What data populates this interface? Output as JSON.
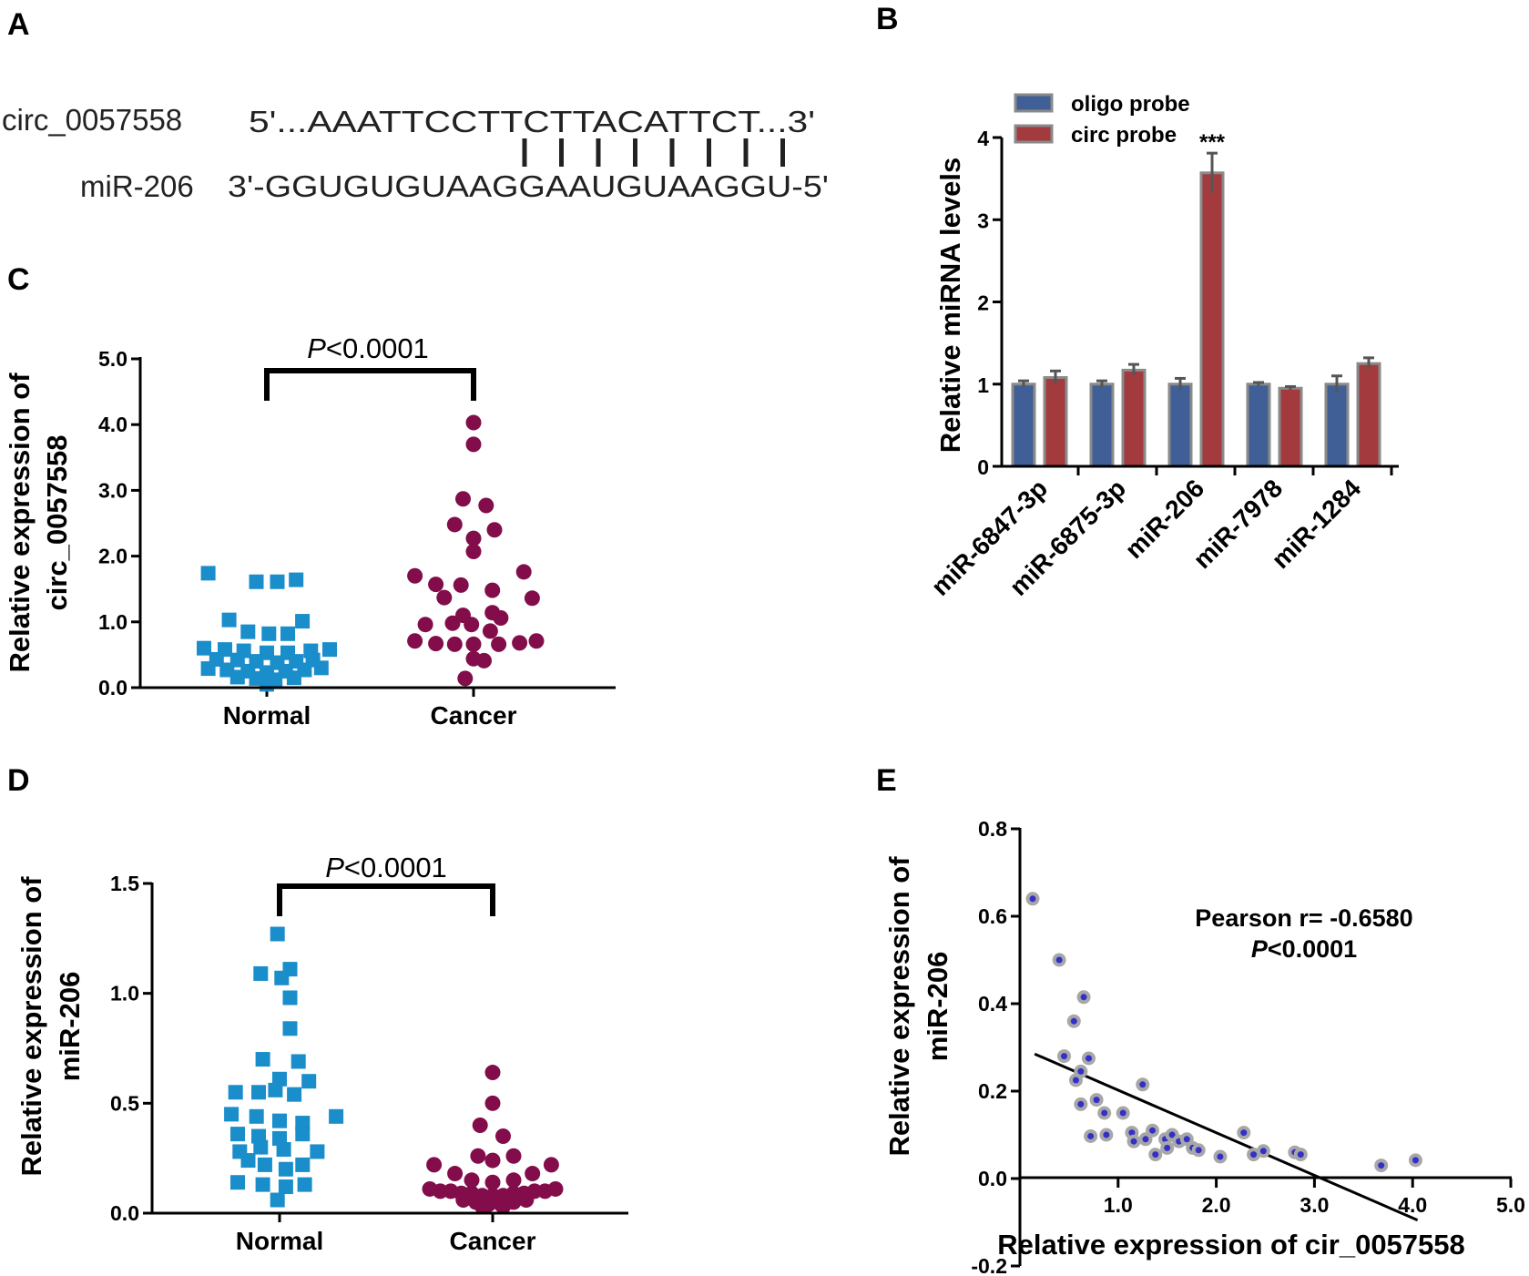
{
  "panel_labels": {
    "a": "A",
    "b": "B",
    "c": "C",
    "d": "D",
    "e": "E"
  },
  "panel_a": {
    "circ_name": "circ_0057558",
    "circ_seq": "5'...AAATTCCTTCTTACATTCT...3'",
    "mir_name": "miR-206",
    "mir_seq": "3'-GGUGUGUAAGGAAUGUAAGGU-5'",
    "pair_count": 8
  },
  "chart_data": [
    {
      "panel": "B",
      "type": "bar",
      "categories": [
        "miR-6847-3p",
        "miR-6875-3p",
        "miR-206",
        "miR-7978",
        "miR-1284"
      ],
      "series": [
        {
          "name": "oligo probe",
          "color": "#3f5f96",
          "values": [
            1.0,
            1.0,
            1.0,
            1.0,
            1.0
          ],
          "errors": [
            0.04,
            0.04,
            0.07,
            0.02,
            0.1
          ]
        },
        {
          "name": "circ probe",
          "color": "#a33a3e",
          "values": [
            1.08,
            1.17,
            3.57,
            0.95,
            1.25
          ],
          "errors": [
            0.08,
            0.07,
            0.24,
            0.02,
            0.07
          ]
        }
      ],
      "ylabel": "Relative miRNA levels",
      "ylim": [
        0,
        4
      ],
      "yticks": [
        "0",
        "1",
        "2",
        "3",
        "4"
      ],
      "annotation": {
        "category": "miR-206",
        "text": "***"
      },
      "legend_position": "top-left"
    },
    {
      "panel": "C",
      "type": "scatter",
      "title": "P<0.0001",
      "title_italic": "P",
      "title_rest": "<0.0001",
      "categories": [
        "Normal",
        "Cancer"
      ],
      "ylabel_line1": "Relative expression of",
      "ylabel_line2": "circ_0057558",
      "ylim": [
        0,
        5
      ],
      "yticks": [
        "0.0",
        "1.0",
        "2.0",
        "3.0",
        "4.0",
        "5.0"
      ],
      "series": [
        {
          "name": "Normal",
          "color": "#1a8dcb",
          "marker": "square",
          "points": [
            [
              -0.28,
              1.74
            ],
            [
              -0.05,
              1.61
            ],
            [
              0.05,
              1.61
            ],
            [
              0.14,
              1.64
            ],
            [
              -0.18,
              1.03
            ],
            [
              0.17,
              1.01
            ],
            [
              -0.09,
              0.85
            ],
            [
              0.01,
              0.82
            ],
            [
              0.1,
              0.82
            ],
            [
              -0.3,
              0.6
            ],
            [
              -0.2,
              0.58
            ],
            [
              -0.11,
              0.56
            ],
            [
              0.0,
              0.53
            ],
            [
              0.1,
              0.53
            ],
            [
              0.21,
              0.56
            ],
            [
              0.3,
              0.58
            ],
            [
              -0.24,
              0.43
            ],
            [
              -0.14,
              0.42
            ],
            [
              -0.05,
              0.4
            ],
            [
              0.05,
              0.38
            ],
            [
              0.14,
              0.4
            ],
            [
              0.22,
              0.42
            ],
            [
              -0.28,
              0.29
            ],
            [
              -0.19,
              0.27
            ],
            [
              -0.09,
              0.25
            ],
            [
              0.0,
              0.23
            ],
            [
              0.09,
              0.25
            ],
            [
              0.18,
              0.27
            ],
            [
              0.26,
              0.3
            ],
            [
              -0.14,
              0.16
            ],
            [
              -0.05,
              0.14
            ],
            [
              0.04,
              0.12
            ],
            [
              0.13,
              0.15
            ],
            [
              0.0,
              0.05
            ]
          ]
        },
        {
          "name": "Cancer",
          "color": "#820d4a",
          "marker": "circle",
          "points": [
            [
              0.0,
              4.03
            ],
            [
              0.0,
              3.7
            ],
            [
              -0.05,
              2.87
            ],
            [
              0.06,
              2.77
            ],
            [
              -0.09,
              2.48
            ],
            [
              0.1,
              2.4
            ],
            [
              0.0,
              2.27
            ],
            [
              0.0,
              2.07
            ],
            [
              -0.28,
              1.7
            ],
            [
              0.24,
              1.76
            ],
            [
              -0.18,
              1.57
            ],
            [
              -0.06,
              1.56
            ],
            [
              0.09,
              1.48
            ],
            [
              0.28,
              1.36
            ],
            [
              -0.14,
              1.37
            ],
            [
              -0.05,
              1.1
            ],
            [
              0.09,
              1.14
            ],
            [
              0.13,
              1.06
            ],
            [
              -0.23,
              0.96
            ],
            [
              -0.1,
              0.98
            ],
            [
              -0.01,
              0.96
            ],
            [
              0.08,
              0.86
            ],
            [
              -0.28,
              0.71
            ],
            [
              -0.18,
              0.67
            ],
            [
              -0.09,
              0.66
            ],
            [
              0.0,
              0.66
            ],
            [
              0.12,
              0.66
            ],
            [
              0.22,
              0.68
            ],
            [
              0.3,
              0.71
            ],
            [
              0.0,
              0.44
            ],
            [
              0.05,
              0.41
            ],
            [
              -0.04,
              0.14
            ]
          ]
        }
      ]
    },
    {
      "panel": "D",
      "type": "scatter",
      "title": "P<0.0001",
      "title_italic": "P",
      "title_rest": "<0.0001",
      "categories": [
        "Normal",
        "Cancer"
      ],
      "ylabel_line1": "Relative expression of",
      "ylabel_line2": "miR-206",
      "ylim": [
        0,
        1.5
      ],
      "yticks": [
        "0.0",
        "0.5",
        "1.0",
        "1.5"
      ],
      "series": [
        {
          "name": "Normal",
          "color": "#1a8dcb",
          "marker": "square",
          "points": [
            [
              -0.01,
              1.27
            ],
            [
              -0.09,
              1.09
            ],
            [
              0.01,
              1.07
            ],
            [
              0.05,
              1.11
            ],
            [
              0.05,
              0.98
            ],
            [
              0.05,
              0.84
            ],
            [
              -0.08,
              0.7
            ],
            [
              0.09,
              0.69
            ],
            [
              -0.21,
              0.55
            ],
            [
              -0.1,
              0.55
            ],
            [
              0.0,
              0.61
            ],
            [
              0.14,
              0.6
            ],
            [
              -0.02,
              0.56
            ],
            [
              0.07,
              0.54
            ],
            [
              -0.23,
              0.45
            ],
            [
              -0.11,
              0.44
            ],
            [
              0.0,
              0.42
            ],
            [
              0.11,
              0.41
            ],
            [
              0.27,
              0.44
            ],
            [
              -0.2,
              0.36
            ],
            [
              -0.1,
              0.35
            ],
            [
              0.0,
              0.34
            ],
            [
              0.11,
              0.36
            ],
            [
              -0.19,
              0.28
            ],
            [
              -0.09,
              0.3
            ],
            [
              0.02,
              0.29
            ],
            [
              0.18,
              0.28
            ],
            [
              -0.15,
              0.24
            ],
            [
              -0.07,
              0.22
            ],
            [
              0.03,
              0.2
            ],
            [
              0.11,
              0.22
            ],
            [
              -0.2,
              0.14
            ],
            [
              -0.08,
              0.13
            ],
            [
              0.03,
              0.12
            ],
            [
              0.12,
              0.13
            ],
            [
              -0.01,
              0.06
            ]
          ]
        },
        {
          "name": "Cancer",
          "color": "#820d4a",
          "marker": "circle",
          "points": [
            [
              0.0,
              0.64
            ],
            [
              0.0,
              0.5
            ],
            [
              -0.06,
              0.4
            ],
            [
              0.05,
              0.35
            ],
            [
              0.1,
              0.26
            ],
            [
              -0.07,
              0.26
            ],
            [
              0.0,
              0.24
            ],
            [
              -0.28,
              0.22
            ],
            [
              0.28,
              0.22
            ],
            [
              -0.18,
              0.18
            ],
            [
              0.19,
              0.18
            ],
            [
              -0.1,
              0.15
            ],
            [
              0.1,
              0.15
            ],
            [
              0.0,
              0.14
            ],
            [
              -0.3,
              0.11
            ],
            [
              -0.25,
              0.1
            ],
            [
              -0.2,
              0.1
            ],
            [
              -0.15,
              0.09
            ],
            [
              -0.1,
              0.09
            ],
            [
              -0.05,
              0.08
            ],
            [
              0.0,
              0.08
            ],
            [
              0.05,
              0.08
            ],
            [
              0.1,
              0.09
            ],
            [
              0.15,
              0.09
            ],
            [
              0.2,
              0.1
            ],
            [
              0.25,
              0.1
            ],
            [
              0.3,
              0.11
            ],
            [
              -0.14,
              0.06
            ],
            [
              -0.08,
              0.05
            ],
            [
              -0.02,
              0.04
            ],
            [
              0.04,
              0.04
            ],
            [
              0.1,
              0.05
            ],
            [
              0.16,
              0.06
            ],
            [
              -0.05,
              0.03
            ],
            [
              0.05,
              0.03
            ]
          ]
        }
      ]
    },
    {
      "panel": "E",
      "type": "scatter",
      "xlabel": "Relative expression of cir_0057558",
      "ylabel_line1": "Relative expression of",
      "ylabel_line2": "miR-206",
      "xlim": [
        0,
        5
      ],
      "ylim": [
        -0.2,
        0.8
      ],
      "xticks": [
        1,
        2,
        3,
        4,
        5
      ],
      "xtick_labels": [
        "1.0",
        "2.0",
        "3.0",
        "4.0",
        "5.0"
      ],
      "yticks": [
        -0.2,
        0,
        0.2,
        0.4,
        0.6,
        0.8
      ],
      "ytick_labels": [
        "-0.2",
        "0.0",
        "0.2",
        "0.4",
        "0.6",
        "0.8"
      ],
      "annotation_line1": "Pearson r= -0.6580",
      "annotation_italic": "P",
      "annotation_rest": "<0.0001",
      "point_fill": "#3330c8",
      "point_ring": "#a7a7a7",
      "fit_line": {
        "x1": 0.15,
        "y1": 0.285,
        "x2": 4.05,
        "y2": -0.095
      },
      "points": [
        [
          0.13,
          0.64
        ],
        [
          0.4,
          0.5
        ],
        [
          0.65,
          0.415
        ],
        [
          0.55,
          0.36
        ],
        [
          0.45,
          0.28
        ],
        [
          0.7,
          0.275
        ],
        [
          0.62,
          0.245
        ],
        [
          0.57,
          0.225
        ],
        [
          1.25,
          0.215
        ],
        [
          0.62,
          0.17
        ],
        [
          0.78,
          0.18
        ],
        [
          0.86,
          0.15
        ],
        [
          1.05,
          0.15
        ],
        [
          0.72,
          0.097
        ],
        [
          0.88,
          0.1
        ],
        [
          1.14,
          0.105
        ],
        [
          1.16,
          0.085
        ],
        [
          1.28,
          0.09
        ],
        [
          1.35,
          0.11
        ],
        [
          1.38,
          0.055
        ],
        [
          1.48,
          0.09
        ],
        [
          1.5,
          0.07
        ],
        [
          1.55,
          0.1
        ],
        [
          1.62,
          0.085
        ],
        [
          1.7,
          0.09
        ],
        [
          1.76,
          0.07
        ],
        [
          1.82,
          0.065
        ],
        [
          2.04,
          0.05
        ],
        [
          2.28,
          0.105
        ],
        [
          2.38,
          0.055
        ],
        [
          2.48,
          0.063
        ],
        [
          2.8,
          0.06
        ],
        [
          2.86,
          0.055
        ],
        [
          3.68,
          0.03
        ],
        [
          4.03,
          0.042
        ]
      ]
    }
  ]
}
